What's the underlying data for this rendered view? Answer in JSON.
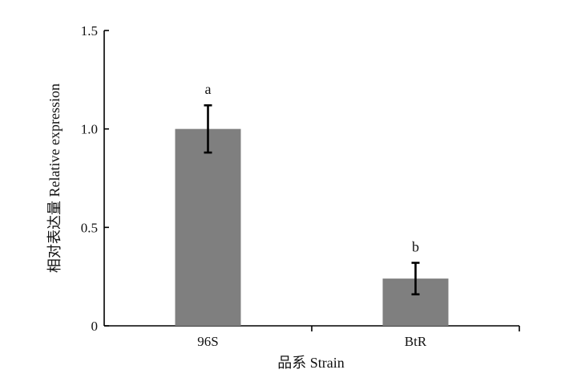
{
  "chart_data": {
    "type": "bar",
    "title": "",
    "xlabel": "品系 Strain",
    "ylabel": "相对表达量 Relative expression",
    "categories": [
      "96S",
      "BtR"
    ],
    "values": [
      1.0,
      0.24
    ],
    "errors": [
      0.12,
      0.08
    ],
    "significance_labels": [
      "a",
      "b"
    ],
    "ylim": [
      0,
      1.5
    ],
    "yticks": [
      0,
      0.5,
      1.0,
      1.5
    ],
    "ytick_labels": [
      "0",
      "0.5",
      "1.0",
      "1.5"
    ],
    "grid": false,
    "bar_color": "#7f7f7f",
    "error_bar_color": "#000000"
  }
}
